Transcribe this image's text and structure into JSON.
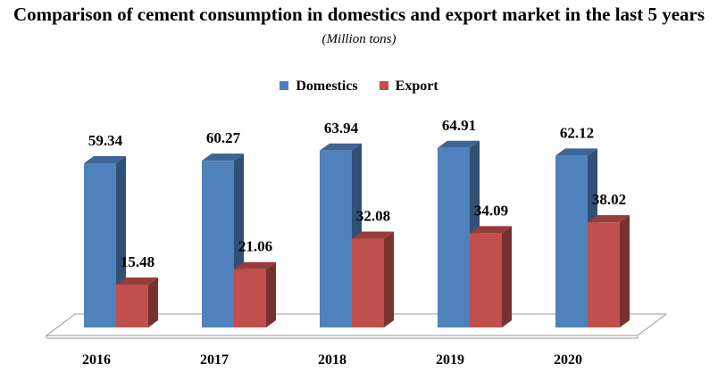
{
  "chart_data": {
    "type": "bar",
    "title": "Comparison of cement consumption in domestics and export market in the last 5 years",
    "title_unit": "(Million tons)",
    "categories": [
      "2016",
      "2017",
      "2018",
      "2019",
      "2020"
    ],
    "series": [
      {
        "name": "Domestics",
        "color": "#4f81bd",
        "values": [
          59.34,
          60.27,
          63.94,
          64.91,
          62.12
        ]
      },
      {
        "name": "Export",
        "color": "#c0504d",
        "values": [
          15.48,
          21.06,
          32.08,
          34.09,
          38.02
        ]
      }
    ],
    "value_labels": [
      [
        "59.34",
        "60.27",
        "63.94",
        "64.91",
        "62.12"
      ],
      [
        "15.48",
        "21.06",
        "32.08",
        "34.09",
        "38.02"
      ]
    ],
    "legend_position": "top",
    "grid": false,
    "ylim": [
      0,
      75
    ]
  }
}
